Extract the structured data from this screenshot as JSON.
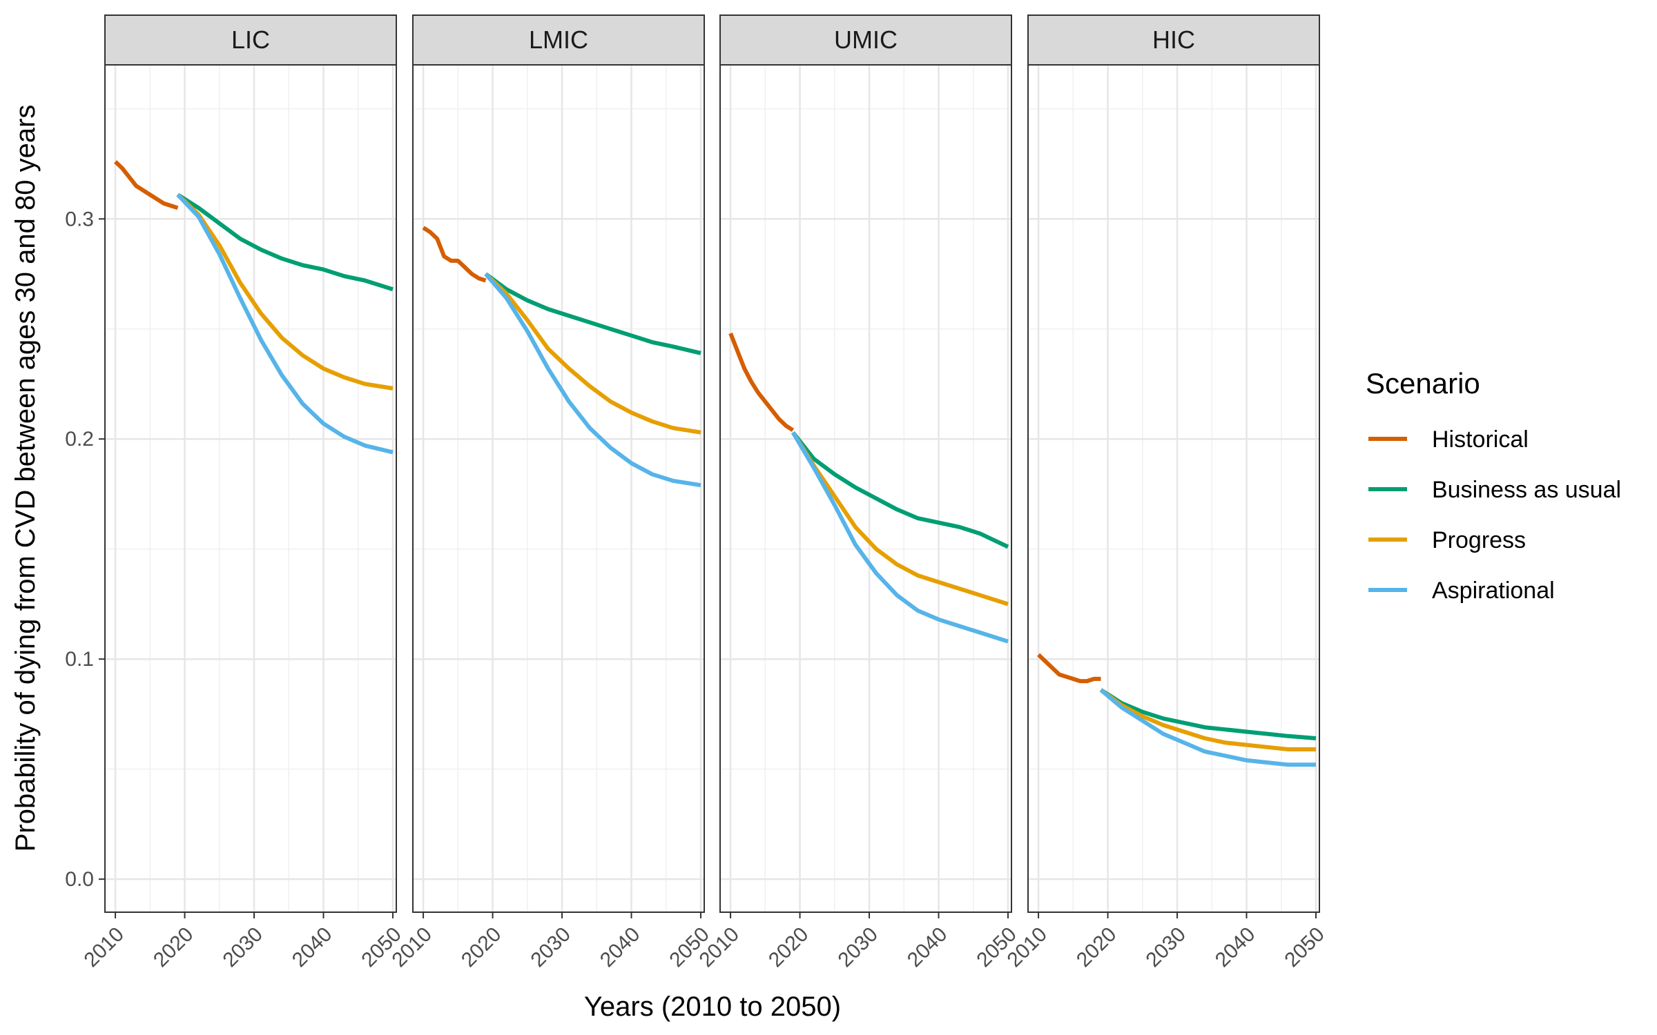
{
  "chart_data": {
    "type": "line",
    "xlabel": "Years (2010 to 2050)",
    "ylabel": "Probability of dying from CVD between ages 30 and 80 years",
    "xlim": [
      2008.5,
      2050.5
    ],
    "ylim": [
      -0.015,
      0.37
    ],
    "x_ticks": [
      2010,
      2020,
      2030,
      2040,
      2050
    ],
    "y_ticks": [
      0.0,
      0.1,
      0.2,
      0.3
    ],
    "y_tick_labels": [
      "0.0",
      "0.1",
      "0.2",
      "0.3"
    ],
    "grid": true,
    "legend": {
      "title": "Scenario",
      "position": "right",
      "entries": [
        {
          "name": "Historical",
          "color": "#D55E00"
        },
        {
          "name": "Business as usual",
          "color": "#009E73"
        },
        {
          "name": "Progress",
          "color": "#E69F00"
        },
        {
          "name": "Aspirational",
          "color": "#56B4E9"
        }
      ]
    },
    "panels": [
      {
        "label": "LIC",
        "series": [
          {
            "name": "Historical",
            "x": [
              2010,
              2011,
              2012,
              2013,
              2014,
              2015,
              2016,
              2017,
              2018,
              2019
            ],
            "y": [
              0.326,
              0.323,
              0.319,
              0.315,
              0.313,
              0.311,
              0.309,
              0.307,
              0.306,
              0.305
            ]
          },
          {
            "name": "Business as usual",
            "x": [
              2019,
              2022,
              2025,
              2028,
              2031,
              2034,
              2037,
              2040,
              2043,
              2046,
              2050
            ],
            "y": [
              0.311,
              0.305,
              0.298,
              0.291,
              0.286,
              0.282,
              0.279,
              0.277,
              0.274,
              0.272,
              0.268
            ]
          },
          {
            "name": "Progress",
            "x": [
              2019,
              2022,
              2025,
              2028,
              2031,
              2034,
              2037,
              2040,
              2043,
              2046,
              2050
            ],
            "y": [
              0.311,
              0.302,
              0.288,
              0.271,
              0.257,
              0.246,
              0.238,
              0.232,
              0.228,
              0.225,
              0.223
            ]
          },
          {
            "name": "Aspirational",
            "x": [
              2019,
              2022,
              2025,
              2028,
              2031,
              2034,
              2037,
              2040,
              2043,
              2046,
              2050
            ],
            "y": [
              0.311,
              0.301,
              0.284,
              0.264,
              0.245,
              0.229,
              0.216,
              0.207,
              0.201,
              0.197,
              0.194
            ]
          }
        ]
      },
      {
        "label": "LMIC",
        "series": [
          {
            "name": "Historical",
            "x": [
              2010,
              2011,
              2012,
              2013,
              2014,
              2015,
              2016,
              2017,
              2018,
              2019
            ],
            "y": [
              0.296,
              0.294,
              0.291,
              0.283,
              0.281,
              0.281,
              0.278,
              0.275,
              0.273,
              0.272
            ]
          },
          {
            "name": "Business as usual",
            "x": [
              2019,
              2022,
              2025,
              2028,
              2031,
              2034,
              2037,
              2040,
              2043,
              2046,
              2050
            ],
            "y": [
              0.275,
              0.268,
              0.263,
              0.259,
              0.256,
              0.253,
              0.25,
              0.247,
              0.244,
              0.242,
              0.239
            ]
          },
          {
            "name": "Progress",
            "x": [
              2019,
              2022,
              2025,
              2028,
              2031,
              2034,
              2037,
              2040,
              2043,
              2046,
              2050
            ],
            "y": [
              0.275,
              0.266,
              0.254,
              0.241,
              0.232,
              0.224,
              0.217,
              0.212,
              0.208,
              0.205,
              0.203
            ]
          },
          {
            "name": "Aspirational",
            "x": [
              2019,
              2022,
              2025,
              2028,
              2031,
              2034,
              2037,
              2040,
              2043,
              2046,
              2050
            ],
            "y": [
              0.275,
              0.264,
              0.249,
              0.232,
              0.217,
              0.205,
              0.196,
              0.189,
              0.184,
              0.181,
              0.179
            ]
          }
        ]
      },
      {
        "label": "UMIC",
        "series": [
          {
            "name": "Historical",
            "x": [
              2010,
              2011,
              2012,
              2013,
              2014,
              2015,
              2016,
              2017,
              2018,
              2019
            ],
            "y": [
              0.248,
              0.24,
              0.232,
              0.226,
              0.221,
              0.217,
              0.213,
              0.209,
              0.206,
              0.204
            ]
          },
          {
            "name": "Business as usual",
            "x": [
              2019,
              2022,
              2025,
              2028,
              2031,
              2034,
              2037,
              2040,
              2043,
              2046,
              2050
            ],
            "y": [
              0.203,
              0.191,
              0.184,
              0.178,
              0.173,
              0.168,
              0.164,
              0.162,
              0.16,
              0.157,
              0.151
            ]
          },
          {
            "name": "Progress",
            "x": [
              2019,
              2022,
              2025,
              2028,
              2031,
              2034,
              2037,
              2040,
              2043,
              2046,
              2050
            ],
            "y": [
              0.203,
              0.188,
              0.174,
              0.16,
              0.15,
              0.143,
              0.138,
              0.135,
              0.132,
              0.129,
              0.125
            ]
          },
          {
            "name": "Aspirational",
            "x": [
              2019,
              2022,
              2025,
              2028,
              2031,
              2034,
              2037,
              2040,
              2043,
              2046,
              2050
            ],
            "y": [
              0.203,
              0.187,
              0.17,
              0.152,
              0.139,
              0.129,
              0.122,
              0.118,
              0.115,
              0.112,
              0.108
            ]
          }
        ]
      },
      {
        "label": "HIC",
        "series": [
          {
            "name": "Historical",
            "x": [
              2010,
              2011,
              2012,
              2013,
              2014,
              2015,
              2016,
              2017,
              2018,
              2019
            ],
            "y": [
              0.102,
              0.099,
              0.096,
              0.093,
              0.092,
              0.091,
              0.09,
              0.09,
              0.091,
              0.091
            ]
          },
          {
            "name": "Business as usual",
            "x": [
              2019,
              2022,
              2025,
              2028,
              2031,
              2034,
              2037,
              2040,
              2043,
              2046,
              2050
            ],
            "y": [
              0.086,
              0.08,
              0.076,
              0.073,
              0.071,
              0.069,
              0.068,
              0.067,
              0.066,
              0.065,
              0.064
            ]
          },
          {
            "name": "Progress",
            "x": [
              2019,
              2022,
              2025,
              2028,
              2031,
              2034,
              2037,
              2040,
              2043,
              2046,
              2050
            ],
            "y": [
              0.086,
              0.079,
              0.074,
              0.07,
              0.067,
              0.064,
              0.062,
              0.061,
              0.06,
              0.059,
              0.059
            ]
          },
          {
            "name": "Aspirational",
            "x": [
              2019,
              2022,
              2025,
              2028,
              2031,
              2034,
              2037,
              2040,
              2043,
              2046,
              2050
            ],
            "y": [
              0.086,
              0.078,
              0.072,
              0.066,
              0.062,
              0.058,
              0.056,
              0.054,
              0.053,
              0.052,
              0.052
            ]
          }
        ]
      }
    ]
  }
}
